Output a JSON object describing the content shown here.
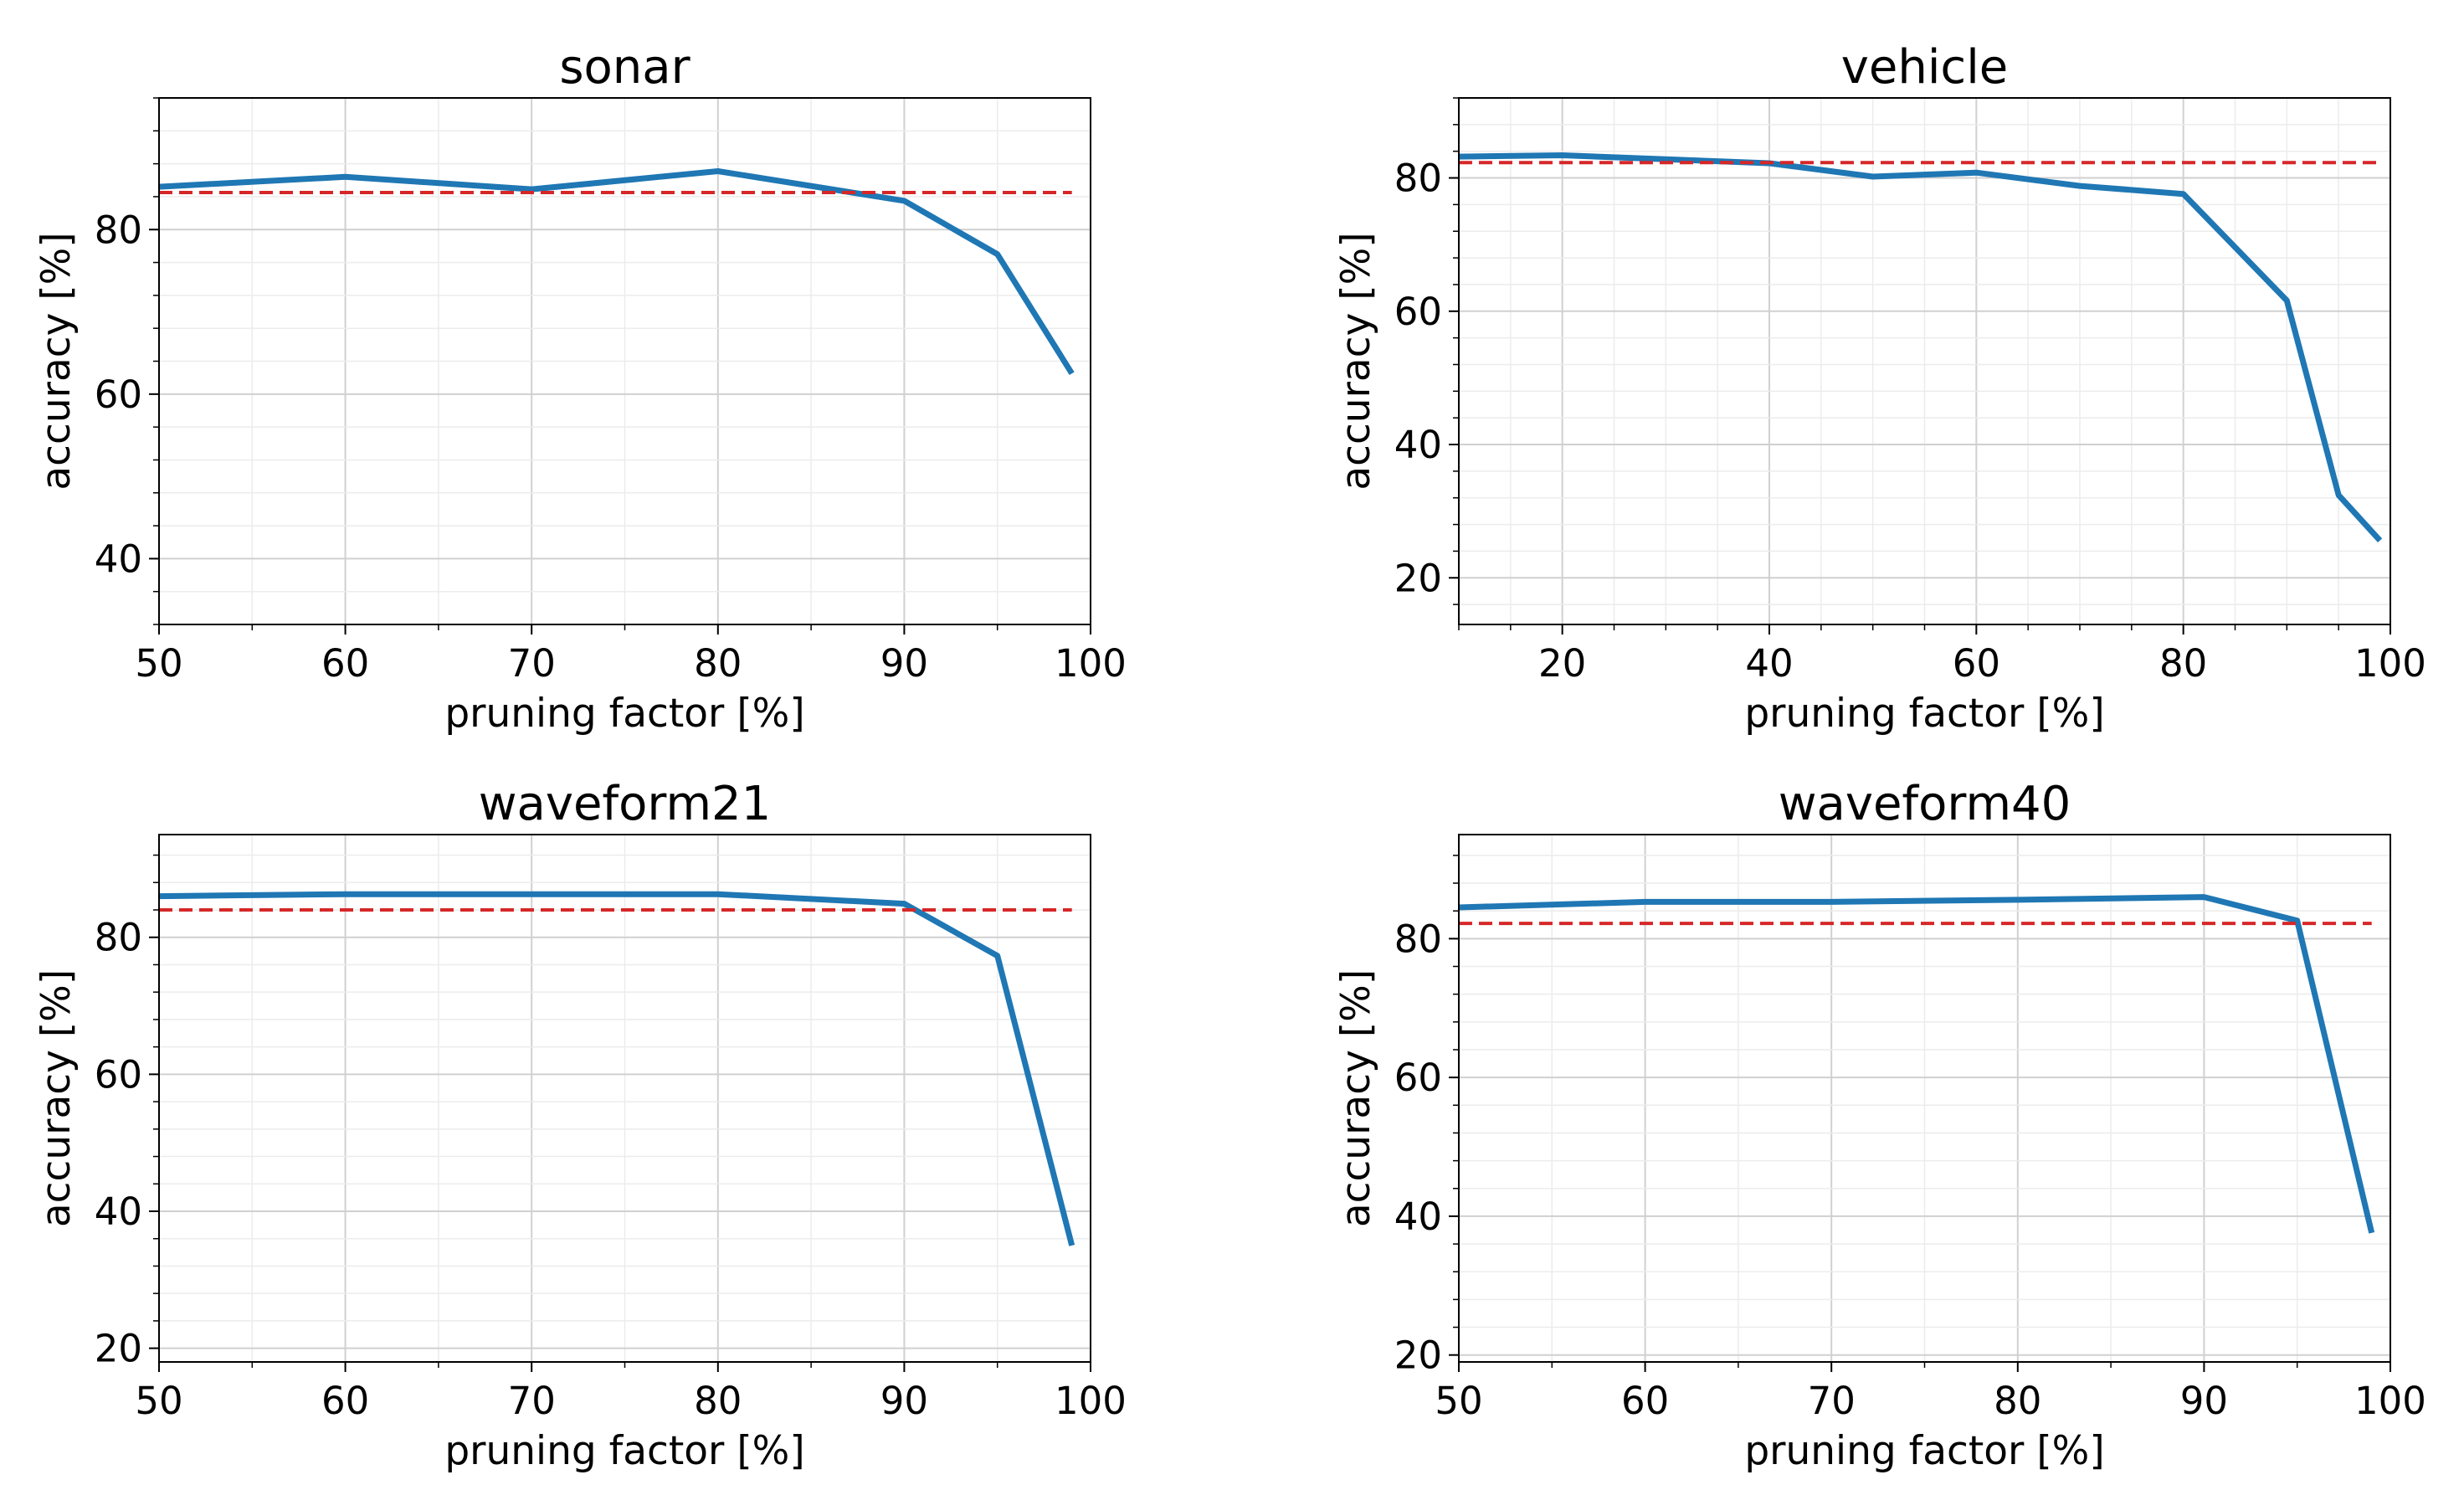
{
  "figure": {
    "colors": {
      "line": "#1f77b4",
      "baseline": "#d62728",
      "grid_major": "#d0d0d0",
      "grid_minor": "#ececec",
      "axes": "#000000"
    }
  },
  "chart_data": [
    {
      "type": "line",
      "title": "sonar",
      "xlabel": "pruning factor [%]",
      "ylabel": "accuracy [%]",
      "xlim": [
        50,
        100
      ],
      "ylim": [
        32,
        96
      ],
      "xticks": [
        50,
        60,
        70,
        80,
        90,
        100
      ],
      "yticks": [
        40,
        60,
        80
      ],
      "xminor": 2,
      "yminor": 5,
      "grid": true,
      "series": [
        {
          "name": "accuracy",
          "style": "solid",
          "x": [
            50,
            60,
            70,
            80,
            90,
            95,
            99
          ],
          "y": [
            85.2,
            86.4,
            84.9,
            87.1,
            83.5,
            77.0,
            62.5
          ]
        },
        {
          "name": "baseline",
          "style": "dashed",
          "x": [
            50,
            99
          ],
          "y": [
            84.5,
            84.5
          ]
        }
      ]
    },
    {
      "type": "line",
      "title": "vehicle",
      "xlabel": "pruning factor [%]",
      "ylabel": "accuracy [%]",
      "xlim": [
        10,
        100
      ],
      "ylim": [
        13,
        92
      ],
      "xticks": [
        20,
        40,
        60,
        80,
        100
      ],
      "yticks": [
        20,
        40,
        60,
        80
      ],
      "xminor": 4,
      "yminor": 5,
      "grid": true,
      "series": [
        {
          "name": "accuracy",
          "style": "solid",
          "x": [
            10,
            20,
            30,
            40,
            50,
            60,
            70,
            80,
            90,
            95,
            99
          ],
          "y": [
            83.2,
            83.4,
            82.8,
            82.2,
            80.2,
            80.8,
            78.8,
            77.6,
            61.6,
            32.4,
            25.6
          ]
        },
        {
          "name": "baseline",
          "style": "dashed",
          "x": [
            10,
            99
          ],
          "y": [
            82.3,
            82.3
          ]
        }
      ]
    },
    {
      "type": "line",
      "title": "waveform21",
      "xlabel": "pruning factor [%]",
      "ylabel": "accuracy [%]",
      "xlim": [
        50,
        100
      ],
      "ylim": [
        18,
        95
      ],
      "xticks": [
        50,
        60,
        70,
        80,
        90,
        100
      ],
      "yticks": [
        20,
        40,
        60,
        80
      ],
      "xminor": 2,
      "yminor": 5,
      "grid": true,
      "series": [
        {
          "name": "accuracy",
          "style": "solid",
          "x": [
            50,
            60,
            70,
            80,
            90,
            95,
            99
          ],
          "y": [
            86.0,
            86.3,
            86.3,
            86.3,
            84.9,
            77.3,
            35.0
          ]
        },
        {
          "name": "baseline",
          "style": "dashed",
          "x": [
            50,
            99
          ],
          "y": [
            84.0,
            84.0
          ]
        }
      ]
    },
    {
      "type": "line",
      "title": "waveform40",
      "xlabel": "pruning factor [%]",
      "ylabel": "accuracy [%]",
      "xlim": [
        50,
        100
      ],
      "ylim": [
        19,
        95
      ],
      "xticks": [
        50,
        60,
        70,
        80,
        90,
        100
      ],
      "yticks": [
        20,
        40,
        60,
        80
      ],
      "xminor": 2,
      "yminor": 5,
      "grid": true,
      "series": [
        {
          "name": "accuracy",
          "style": "solid",
          "x": [
            50,
            60,
            70,
            80,
            90,
            95,
            99
          ],
          "y": [
            84.5,
            85.3,
            85.3,
            85.6,
            86.0,
            82.6,
            37.6
          ]
        },
        {
          "name": "baseline",
          "style": "dashed",
          "x": [
            50,
            99
          ],
          "y": [
            82.2,
            82.2
          ]
        }
      ]
    }
  ]
}
